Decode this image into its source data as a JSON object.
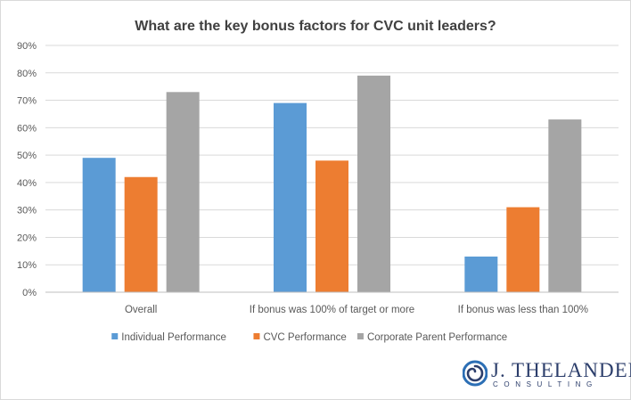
{
  "chart_data": {
    "type": "bar",
    "title": "What are the key bonus factors for CVC unit leaders?",
    "categories": [
      "Overall",
      "If bonus was 100% of target or more",
      "If bonus was less than 100%"
    ],
    "series": [
      {
        "name": "Individual Performance",
        "values": [
          49,
          69,
          13
        ],
        "color": "#5b9bd5"
      },
      {
        "name": "CVC Performance",
        "values": [
          42,
          48,
          31
        ],
        "color": "#ed7d31"
      },
      {
        "name": "Corporate Parent Performance",
        "values": [
          73,
          79,
          63
        ],
        "color": "#a5a5a5"
      }
    ],
    "yticks": [
      "0%",
      "10%",
      "20%",
      "30%",
      "40%",
      "50%",
      "60%",
      "70%",
      "80%",
      "90%"
    ],
    "ylim": [
      0,
      90
    ],
    "grid": true,
    "legend_position": "bottom"
  },
  "logo": {
    "name": "J. THELANDER",
    "tagline": "CONSULTING",
    "mark_icon": "spiral-icon",
    "color": "#2c3e6b"
  }
}
